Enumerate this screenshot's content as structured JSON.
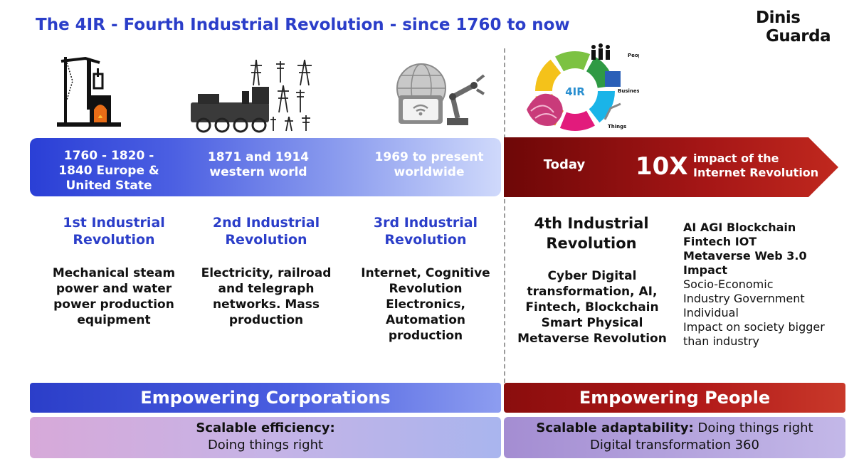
{
  "title": "The 4IR - Fourth Industrial Revolution - since 1760 to now",
  "logo": {
    "line1": "Dinis",
    "line2": "Guarda"
  },
  "colors": {
    "blue": "#2b3ec9",
    "red": "#9e1414",
    "dark_red": "#6e0707"
  },
  "eras": [
    {
      "period": "1760 - 1820 - 1840 Europe & United State",
      "revolution": "1st Industrial Revolution",
      "description": "Mechanical steam power and water power production equipment",
      "icon": "steam-engine-icon"
    },
    {
      "period": "1871 and 1914 western world",
      "revolution": "2nd Industrial Revolution",
      "description": "Electricity,  railroad and telegraph networks. Mass production",
      "icon": "train-powerlines-icon"
    },
    {
      "period": "1969 to present worldwide",
      "revolution": "3rd Industrial Revolution",
      "description": "Internet, Cognitive Revolution Electronics, Automation production",
      "icon": "internet-robot-arm-icon"
    }
  ],
  "fourth": {
    "today": "Today",
    "multiplier": "10X",
    "impact": "impact of the Internet Revolution",
    "revolution": "4th Industrial Revolution",
    "description": "Cyber Digital transformation, AI, Fintech, Blockchain Smart Physical Metaverse Revolution",
    "icon": "4ir-wheel-icon",
    "wheel": {
      "center": "4IR",
      "labels": [
        "People",
        "Business",
        "Things"
      ]
    }
  },
  "list": {
    "bold": [
      "AI AGI Blockchain",
      "Fintech IOT",
      "Metaverse Web 3.0",
      "Impact"
    ],
    "normal": [
      "Socio-Economic",
      "Industry Government",
      "Individual",
      "Impact on society bigger",
      "than industry"
    ]
  },
  "bands": {
    "corporations": "Empowering Corporations",
    "people": "Empowering People"
  },
  "boxes": {
    "left_bold": "Scalable efficiency:",
    "left_text": "Doing things right",
    "right_bold": "Scalable adaptability:",
    "right_text": " Doing things right",
    "right_line2": "Digital transformation 360"
  }
}
